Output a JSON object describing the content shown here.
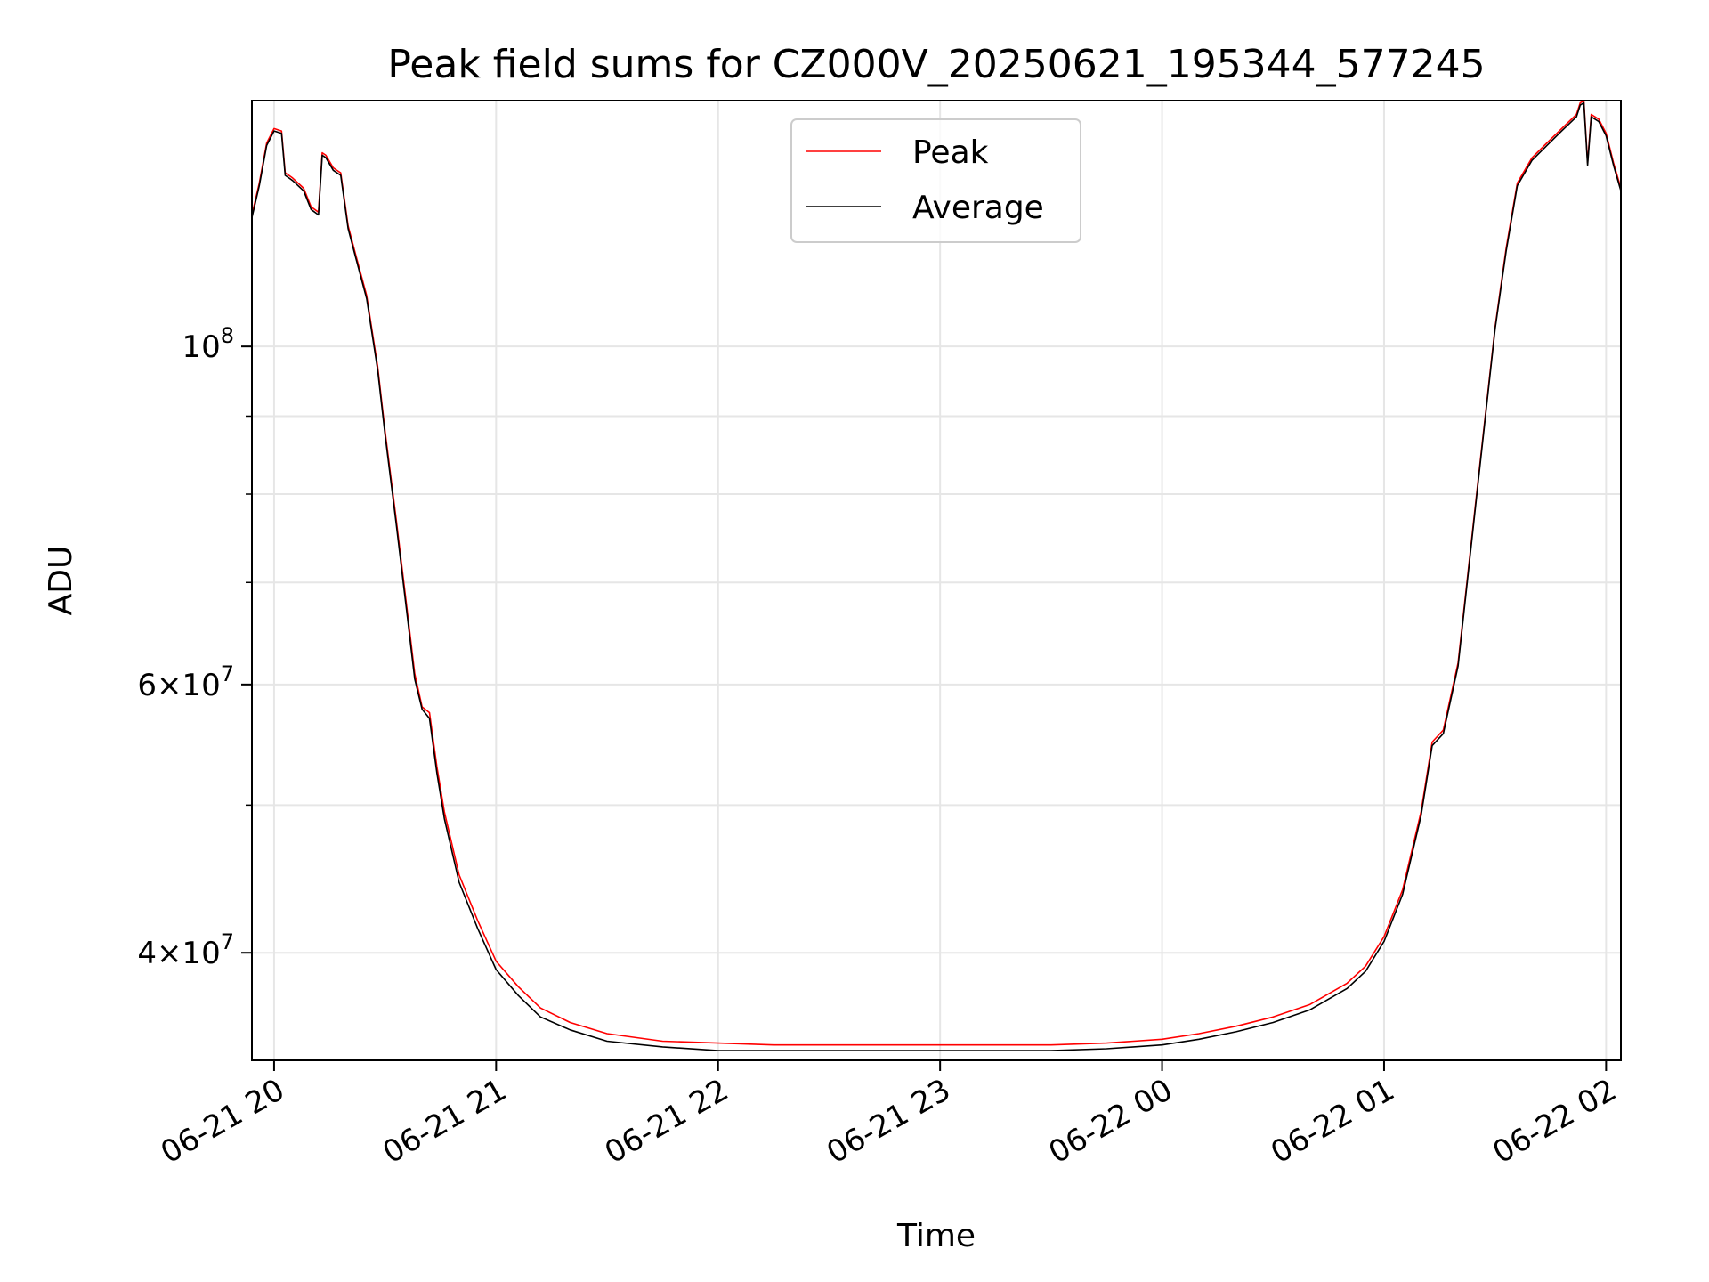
{
  "chart_data": {
    "type": "line",
    "title": "Peak field sums for CZ000V_20250621_195344_577245",
    "xlabel": "Time",
    "ylabel": "ADU",
    "x_scale": "time",
    "y_scale": "log",
    "xlim": [
      "2025-06-21T19:54",
      "2025-06-22T02:04"
    ],
    "ylim": [
      34000000,
      145000000
    ],
    "grid": true,
    "legend": {
      "location": "upper-center"
    },
    "x_ticks": [
      {
        "t": "2025-06-21T20:00",
        "label": "06-21 20"
      },
      {
        "t": "2025-06-21T21:00",
        "label": "06-21 21"
      },
      {
        "t": "2025-06-21T22:00",
        "label": "06-21 22"
      },
      {
        "t": "2025-06-21T23:00",
        "label": "06-21 23"
      },
      {
        "t": "2025-06-22T00:00",
        "label": "06-22 00"
      },
      {
        "t": "2025-06-22T01:00",
        "label": "06-22 01"
      },
      {
        "t": "2025-06-22T02:00",
        "label": "06-22 02"
      }
    ],
    "y_ticks_major": [
      {
        "v": 40000000,
        "base": "4×10",
        "exp": "7"
      },
      {
        "v": 60000000,
        "base": "6×10",
        "exp": "7"
      },
      {
        "v": 100000000,
        "base": "10",
        "exp": "8"
      }
    ],
    "y_ticks_minor": [
      50000000,
      70000000,
      80000000,
      90000000
    ],
    "series": [
      {
        "name": "Peak",
        "color": "#ff0000",
        "x": [
          "2025-06-21T19:54",
          "2025-06-21T19:56",
          "2025-06-21T19:58",
          "2025-06-21T20:00",
          "2025-06-21T20:02",
          "2025-06-21T20:03",
          "2025-06-21T20:04",
          "2025-06-21T20:05",
          "2025-06-21T20:08",
          "2025-06-21T20:10",
          "2025-06-21T20:12",
          "2025-06-21T20:13",
          "2025-06-21T20:14",
          "2025-06-21T20:16",
          "2025-06-21T20:18",
          "2025-06-21T20:20",
          "2025-06-21T20:22",
          "2025-06-21T20:25",
          "2025-06-21T20:28",
          "2025-06-21T20:30",
          "2025-06-21T20:33",
          "2025-06-21T20:36",
          "2025-06-21T20:38",
          "2025-06-21T20:40",
          "2025-06-21T20:42",
          "2025-06-21T20:44",
          "2025-06-21T20:46",
          "2025-06-21T20:50",
          "2025-06-21T20:55",
          "2025-06-21T21:00",
          "2025-06-21T21:06",
          "2025-06-21T21:12",
          "2025-06-21T21:20",
          "2025-06-21T21:30",
          "2025-06-21T21:45",
          "2025-06-21T22:00",
          "2025-06-21T22:15",
          "2025-06-21T22:30",
          "2025-06-21T22:45",
          "2025-06-21T23:00",
          "2025-06-21T23:15",
          "2025-06-21T23:30",
          "2025-06-21T23:45",
          "2025-06-22T00:00",
          "2025-06-22T00:10",
          "2025-06-22T00:20",
          "2025-06-22T00:30",
          "2025-06-22T00:40",
          "2025-06-22T00:50",
          "2025-06-22T00:55",
          "2025-06-22T01:00",
          "2025-06-22T01:05",
          "2025-06-22T01:10",
          "2025-06-22T01:13",
          "2025-06-22T01:16",
          "2025-06-22T01:20",
          "2025-06-22T01:25",
          "2025-06-22T01:30",
          "2025-06-22T01:33",
          "2025-06-22T01:36",
          "2025-06-22T01:40",
          "2025-06-22T01:44",
          "2025-06-22T01:48",
          "2025-06-22T01:52",
          "2025-06-22T01:53",
          "2025-06-22T01:54",
          "2025-06-22T01:55",
          "2025-06-22T01:56",
          "2025-06-22T01:58",
          "2025-06-22T02:00",
          "2025-06-22T02:02",
          "2025-06-22T02:04"
        ],
        "y": [
          122000000,
          128000000,
          136000000,
          139000000,
          138500000,
          130000000,
          129500000,
          129000000,
          127000000,
          123500000,
          122500000,
          134000000,
          133500000,
          131000000,
          130000000,
          120000000,
          115000000,
          108000000,
          97000000,
          88000000,
          77000000,
          67000000,
          61000000,
          58000000,
          57500000,
          53000000,
          49500000,
          45000000,
          42000000,
          39500000,
          38000000,
          36800000,
          36000000,
          35400000,
          35000000,
          34900000,
          34800000,
          34800000,
          34800000,
          34800000,
          34800000,
          34800000,
          34900000,
          35100000,
          35400000,
          35800000,
          36300000,
          37000000,
          38200000,
          39200000,
          41000000,
          44000000,
          49500000,
          55000000,
          56000000,
          62000000,
          80000000,
          103000000,
          116000000,
          128000000,
          133000000,
          136000000,
          139000000,
          142000000,
          144500000,
          145000000,
          132000000,
          142000000,
          141000000,
          138000000,
          132000000,
          127000000
        ]
      },
      {
        "name": "Average",
        "color": "#000000",
        "x": [
          "2025-06-21T19:54",
          "2025-06-21T19:56",
          "2025-06-21T19:58",
          "2025-06-21T20:00",
          "2025-06-21T20:02",
          "2025-06-21T20:03",
          "2025-06-21T20:04",
          "2025-06-21T20:05",
          "2025-06-21T20:08",
          "2025-06-21T20:10",
          "2025-06-21T20:12",
          "2025-06-21T20:13",
          "2025-06-21T20:14",
          "2025-06-21T20:16",
          "2025-06-21T20:18",
          "2025-06-21T20:20",
          "2025-06-21T20:22",
          "2025-06-21T20:25",
          "2025-06-21T20:28",
          "2025-06-21T20:30",
          "2025-06-21T20:33",
          "2025-06-21T20:36",
          "2025-06-21T20:38",
          "2025-06-21T20:40",
          "2025-06-21T20:42",
          "2025-06-21T20:44",
          "2025-06-21T20:46",
          "2025-06-21T20:50",
          "2025-06-21T20:55",
          "2025-06-21T21:00",
          "2025-06-21T21:06",
          "2025-06-21T21:12",
          "2025-06-21T21:20",
          "2025-06-21T21:30",
          "2025-06-21T21:45",
          "2025-06-21T22:00",
          "2025-06-21T22:15",
          "2025-06-21T22:30",
          "2025-06-21T22:45",
          "2025-06-21T23:00",
          "2025-06-21T23:15",
          "2025-06-21T23:30",
          "2025-06-21T23:45",
          "2025-06-22T00:00",
          "2025-06-22T00:10",
          "2025-06-22T00:20",
          "2025-06-22T00:30",
          "2025-06-22T00:40",
          "2025-06-22T00:50",
          "2025-06-22T00:55",
          "2025-06-22T01:00",
          "2025-06-22T01:05",
          "2025-06-22T01:10",
          "2025-06-22T01:13",
          "2025-06-22T01:16",
          "2025-06-22T01:20",
          "2025-06-22T01:25",
          "2025-06-22T01:30",
          "2025-06-22T01:33",
          "2025-06-22T01:36",
          "2025-06-22T01:40",
          "2025-06-22T01:44",
          "2025-06-22T01:48",
          "2025-06-22T01:52",
          "2025-06-22T01:53",
          "2025-06-22T01:54",
          "2025-06-22T01:55",
          "2025-06-22T01:56",
          "2025-06-22T01:58",
          "2025-06-22T02:00",
          "2025-06-22T02:02",
          "2025-06-22T02:04"
        ],
        "y": [
          121500000,
          127500000,
          135500000,
          138500000,
          138000000,
          129500000,
          129000000,
          128500000,
          126500000,
          123000000,
          122000000,
          133500000,
          133000000,
          130500000,
          129500000,
          119500000,
          114500000,
          107500000,
          96500000,
          87500000,
          76500000,
          66500000,
          60500000,
          57800000,
          57000000,
          52500000,
          49000000,
          44500000,
          41500000,
          39000000,
          37500000,
          36300000,
          35600000,
          35000000,
          34700000,
          34500000,
          34500000,
          34500000,
          34500000,
          34500000,
          34500000,
          34500000,
          34600000,
          34800000,
          35100000,
          35500000,
          36000000,
          36700000,
          37900000,
          38900000,
          40700000,
          43700000,
          49200000,
          54700000,
          55700000,
          61700000,
          79700000,
          102700000,
          115500000,
          127500000,
          132500000,
          135500000,
          138500000,
          141500000,
          144000000,
          144500000,
          131500000,
          141500000,
          140500000,
          137500000,
          131500000,
          126500000
        ]
      }
    ]
  }
}
